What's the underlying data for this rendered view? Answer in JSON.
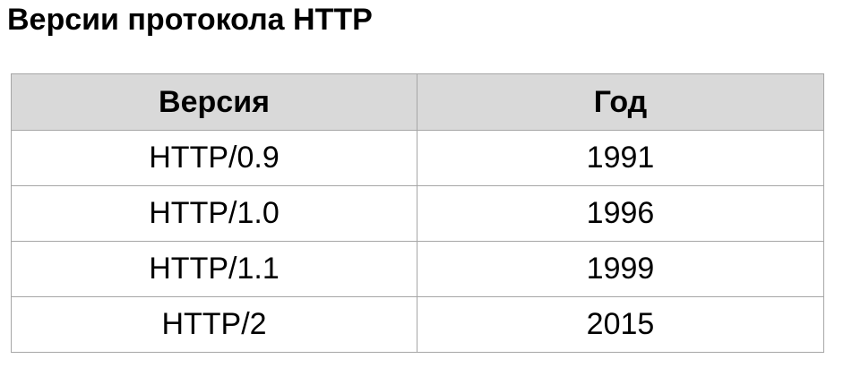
{
  "title": "Версии протокола HTTP",
  "table": {
    "headers": {
      "version": "Версия",
      "year": "Год"
    },
    "rows": [
      {
        "version": "HTTP/0.9",
        "year": "1991"
      },
      {
        "version": "HTTP/1.0",
        "year": "1996"
      },
      {
        "version": "HTTP/1.1",
        "year": "1999"
      },
      {
        "version": "HTTP/2",
        "year": "2015"
      }
    ]
  }
}
